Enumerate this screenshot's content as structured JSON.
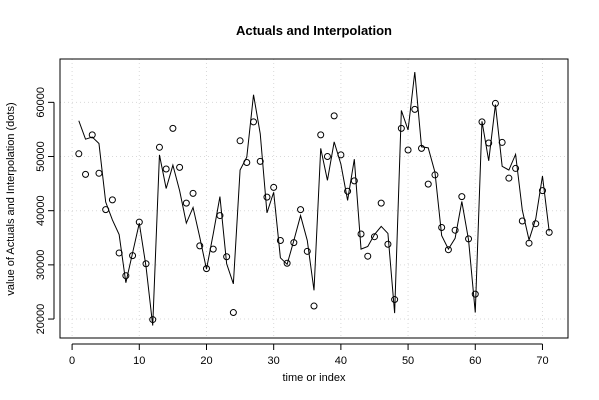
{
  "chart_data": {
    "type": "line",
    "title": "Actuals and Interpolation",
    "xlabel": "time or index",
    "ylabel": "value of Actuals and Interpolation (dots)",
    "xlim": [
      -1.8,
      73.8
    ],
    "ylim": [
      16500,
      68000
    ],
    "xticks": [
      0,
      10,
      20,
      30,
      40,
      50,
      60,
      70
    ],
    "yticks": [
      20000,
      30000,
      40000,
      50000,
      60000
    ],
    "grid": true,
    "series": [
      {
        "style": "line",
        "x": [
          1,
          2,
          3,
          4,
          5,
          6,
          7,
          8,
          9,
          10,
          11,
          12,
          13,
          14,
          15,
          16,
          17,
          18,
          19,
          20,
          21,
          22,
          23,
          24,
          25,
          26,
          27,
          28,
          29,
          30,
          31,
          32,
          33,
          34,
          35,
          36,
          37,
          38,
          39,
          40,
          41,
          42,
          43,
          44,
          45,
          46,
          47,
          48,
          49,
          50,
          51,
          52,
          53,
          54,
          55,
          56,
          57,
          58,
          59,
          60,
          61,
          62,
          63,
          64,
          65,
          66,
          67,
          68,
          69,
          70,
          71
        ],
        "values": [
          56600,
          53200,
          53600,
          52400,
          41600,
          38300,
          35600,
          26700,
          32200,
          37700,
          29700,
          18800,
          50300,
          44100,
          48400,
          43700,
          37700,
          40600,
          35100,
          29200,
          35700,
          42600,
          30200,
          26500,
          47500,
          49900,
          61400,
          54200,
          39600,
          43400,
          31300,
          30100,
          34500,
          39100,
          34500,
          25300,
          51500,
          45600,
          52700,
          48600,
          41900,
          49500,
          32900,
          33400,
          35600,
          37100,
          35800,
          21100,
          58500,
          54900,
          65600,
          51800,
          51600,
          47100,
          35400,
          32900,
          34900,
          41700,
          34600,
          21200,
          56500,
          49200,
          59600,
          48200,
          47500,
          50400,
          40100,
          34600,
          38500,
          46400,
          36200
        ]
      },
      {
        "style": "dots",
        "x": [
          1,
          2,
          3,
          4,
          5,
          6,
          7,
          8,
          9,
          10,
          11,
          12,
          13,
          14,
          15,
          16,
          17,
          18,
          19,
          20,
          21,
          22,
          23,
          24,
          25,
          26,
          27,
          28,
          29,
          30,
          31,
          32,
          33,
          34,
          35,
          36,
          37,
          38,
          39,
          40,
          41,
          42,
          43,
          44,
          45,
          46,
          47,
          48,
          49,
          50,
          51,
          52,
          53,
          54,
          55,
          56,
          57,
          58,
          59,
          60,
          61,
          62,
          63,
          64,
          65,
          66,
          67,
          68,
          69,
          70,
          71
        ],
        "values": [
          50500,
          46700,
          54000,
          46900,
          40200,
          42000,
          32200,
          28000,
          31700,
          37900,
          30200,
          19900,
          51700,
          47700,
          55200,
          48000,
          41400,
          43200,
          33500,
          29300,
          32900,
          39100,
          31500,
          21200,
          52900,
          48900,
          56400,
          49100,
          42500,
          44300,
          34500,
          30300,
          34100,
          40200,
          32500,
          22400,
          54000,
          50000,
          57500,
          50300,
          43600,
          45500,
          35700,
          31600,
          35200,
          41400,
          33800,
          23600,
          55200,
          51200,
          58700,
          51500,
          44900,
          46600,
          36900,
          32800,
          36400,
          42600,
          34800,
          24600,
          56400,
          52500,
          59800,
          52600,
          46000,
          47800,
          38100,
          34000,
          37600,
          43700,
          36000
        ]
      }
    ]
  }
}
